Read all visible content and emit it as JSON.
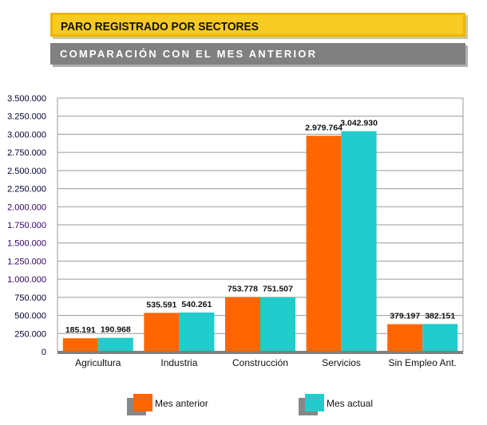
{
  "header": {
    "title": "PARO REGISTRADO POR SECTORES",
    "subtitle": "COMPARACIÓN CON EL MES ANTERIOR"
  },
  "chart_data": {
    "type": "bar",
    "categories": [
      "Agricultura",
      "Industria",
      "Construcción",
      "Servicios",
      "Sin Empleo Ant."
    ],
    "series": [
      {
        "name": "Mes anterior",
        "color": "#ff6600",
        "values": [
          185191,
          535591,
          753778,
          2979764,
          379197
        ],
        "labels": [
          "185.191",
          "535.591",
          "753.778",
          "2.979.764",
          "379.197"
        ]
      },
      {
        "name": "Mes actual",
        "color": "#22cccc",
        "values": [
          190968,
          540261,
          751507,
          3042930,
          382151
        ],
        "labels": [
          "190.968",
          "540.261",
          "751.507",
          "3.042.930",
          "382.151"
        ]
      }
    ],
    "ylim": [
      0,
      3500000
    ],
    "yticks": [
      "0",
      "250.000",
      "500.000",
      "750.000",
      "1.000.000",
      "1.250.000",
      "1.500.000",
      "1.750.000",
      "2.000.000",
      "2.250.000",
      "2.500.000",
      "2.750.000",
      "3.000.000",
      "3.250.000",
      "3.500.000"
    ],
    "grid": true,
    "legend": "bottom"
  }
}
